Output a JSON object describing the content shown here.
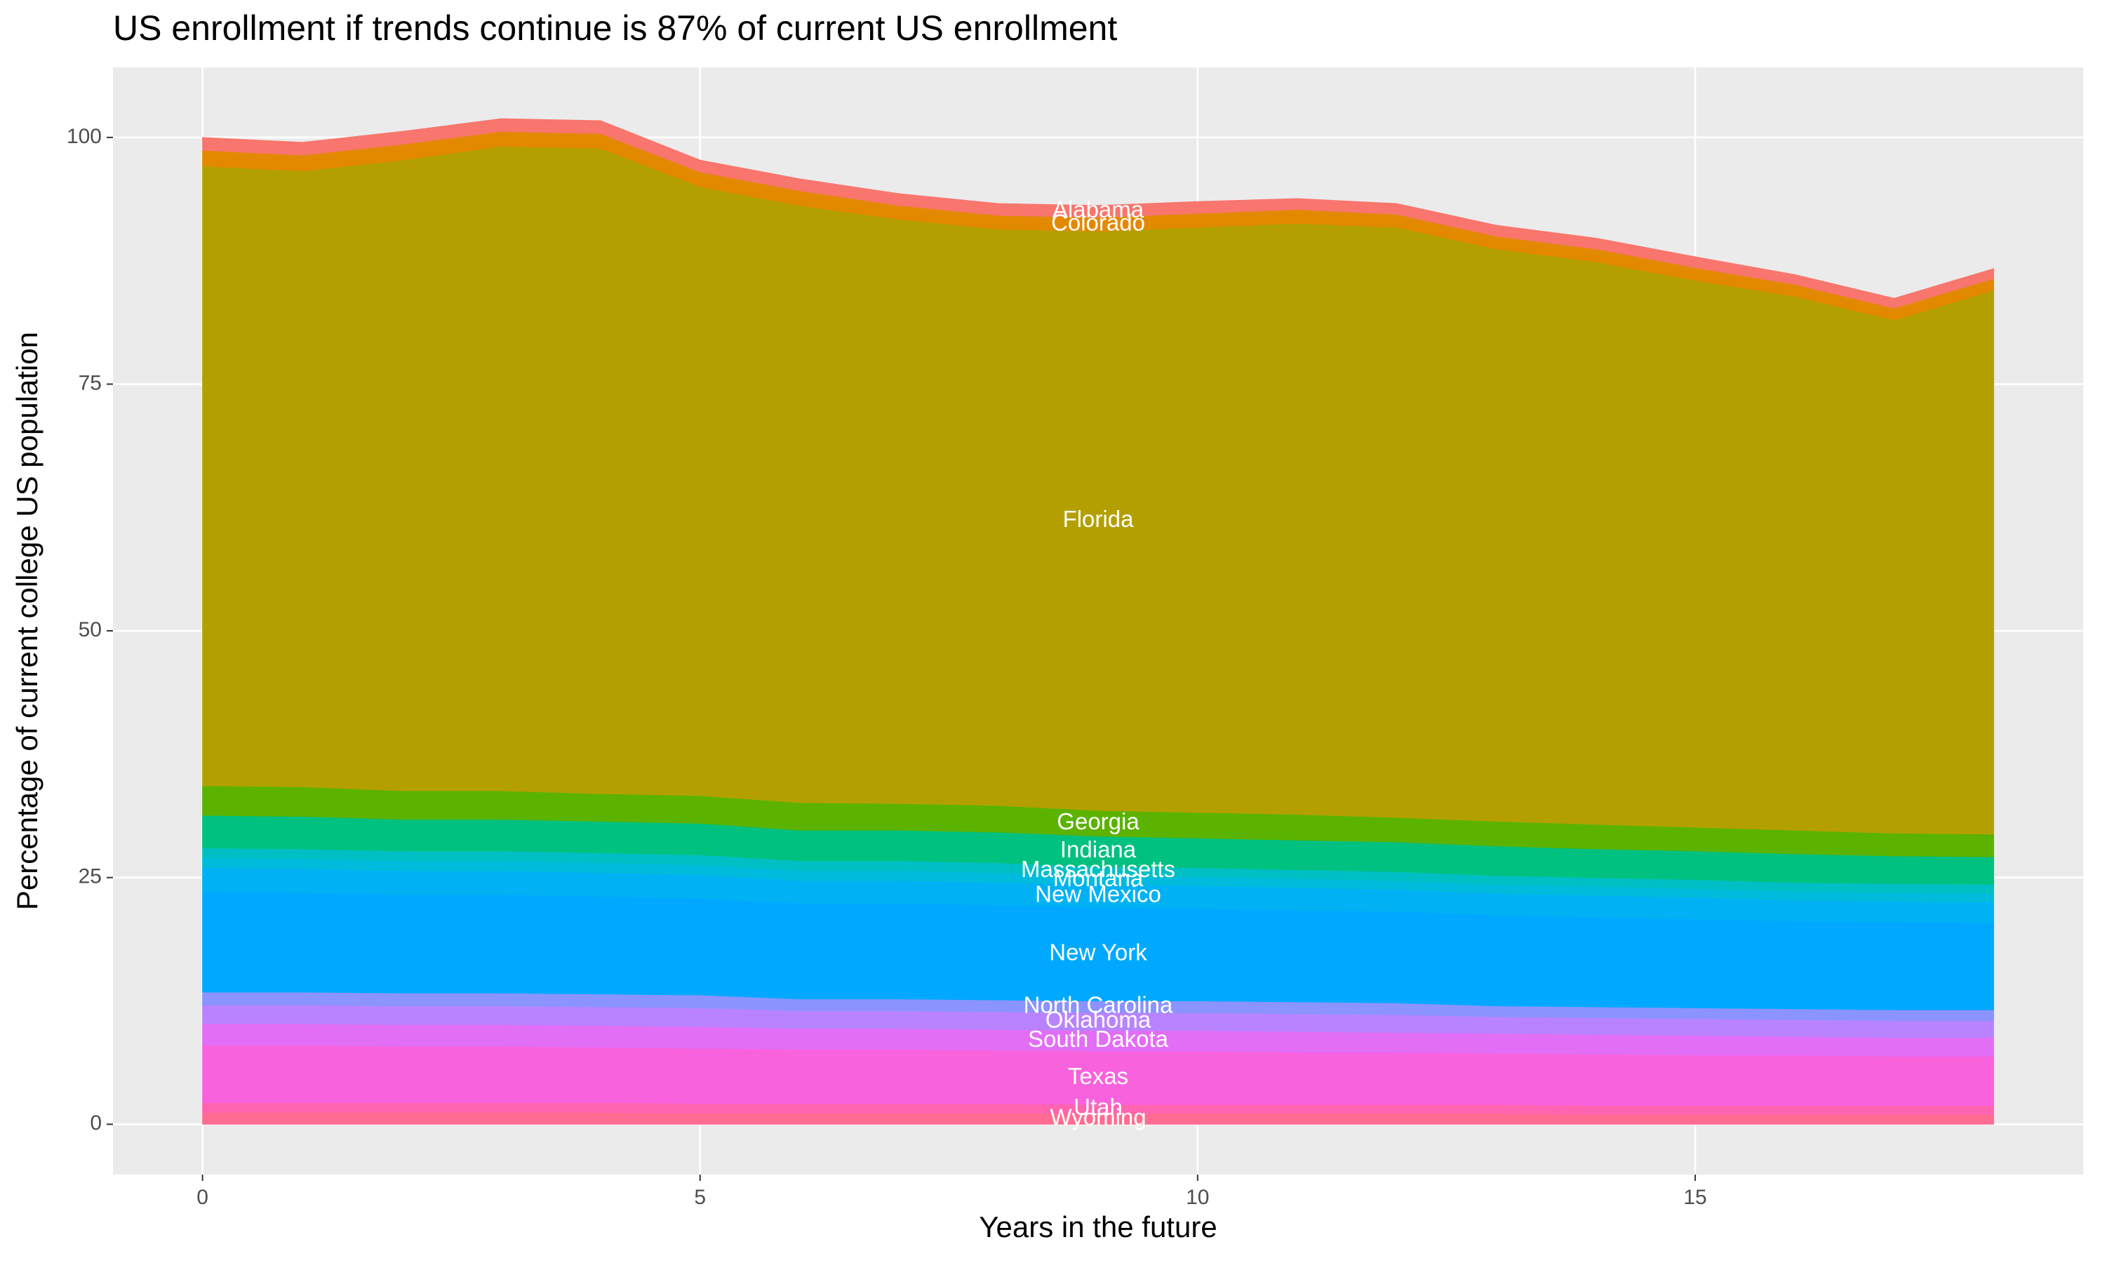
{
  "chart_data": {
    "type": "area",
    "stacked": true,
    "title": "US enrollment if trends continue is 87% of current US enrollment",
    "x_label": "Years in the future",
    "y_label": "Percentage of current college US population",
    "x": [
      0,
      1,
      2,
      3,
      4,
      5,
      6,
      7,
      8,
      9,
      10,
      11,
      12,
      13,
      14,
      15,
      16,
      17,
      18
    ],
    "xlim": [
      -0.9,
      18.9
    ],
    "xticks": [
      0,
      5,
      10,
      15
    ],
    "ylim": [
      -5.1,
      107.1
    ],
    "yticks": [
      0,
      25,
      50,
      75,
      100
    ],
    "grid": true,
    "series": [
      {
        "name": "Wyoming",
        "color": "#ff6c91",
        "values": [
          1.2,
          1.2,
          1.2,
          1.2,
          1.2,
          1.1,
          1.1,
          1.1,
          1.1,
          1.1,
          1.1,
          1.1,
          1.1,
          1.1,
          1.0,
          1.0,
          1.0,
          1.0,
          1.0
        ]
      },
      {
        "name": "Utah",
        "color": "#ff64b0",
        "values": [
          1.0,
          1.0,
          1.0,
          1.0,
          1.0,
          1.0,
          1.0,
          1.0,
          1.0,
          0.9,
          0.9,
          0.9,
          0.9,
          0.9,
          0.9,
          0.9,
          0.9,
          0.9,
          0.9
        ]
      },
      {
        "name": "Texas",
        "color": "#f962dd",
        "values": [
          5.8,
          5.8,
          5.7,
          5.7,
          5.6,
          5.6,
          5.5,
          5.5,
          5.4,
          5.4,
          5.4,
          5.3,
          5.3,
          5.2,
          5.2,
          5.1,
          5.1,
          5.0,
          5.0
        ]
      },
      {
        "name": "South Dakota",
        "color": "#e36ef6",
        "values": [
          2.2,
          2.2,
          2.2,
          2.2,
          2.2,
          2.2,
          2.1,
          2.1,
          2.1,
          2.1,
          2.1,
          2.1,
          2.0,
          2.0,
          2.0,
          2.0,
          1.9,
          1.9,
          1.9
        ]
      },
      {
        "name": "Oklahoma",
        "color": "#b983ff",
        "values": [
          1.9,
          1.9,
          1.9,
          1.9,
          1.9,
          1.9,
          1.8,
          1.8,
          1.8,
          1.8,
          1.8,
          1.8,
          1.8,
          1.7,
          1.7,
          1.7,
          1.7,
          1.7,
          1.7
        ]
      },
      {
        "name": "North Carolina",
        "color": "#8b93ff",
        "values": [
          1.3,
          1.3,
          1.3,
          1.3,
          1.3,
          1.3,
          1.2,
          1.2,
          1.2,
          1.2,
          1.2,
          1.2,
          1.2,
          1.1,
          1.1,
          1.1,
          1.1,
          1.1,
          1.1
        ]
      },
      {
        "name": "New York",
        "color": "#00a9ff",
        "values": [
          10.2,
          10.1,
          10.0,
          10.0,
          9.9,
          9.8,
          9.7,
          9.7,
          9.6,
          9.5,
          9.4,
          9.3,
          9.3,
          9.2,
          9.1,
          9.0,
          8.9,
          8.9,
          8.8
        ]
      },
      {
        "name": "New Mexico",
        "color": "#00b2f3",
        "values": [
          2.4,
          2.4,
          2.4,
          2.4,
          2.4,
          2.4,
          2.3,
          2.3,
          2.3,
          2.3,
          2.3,
          2.3,
          2.2,
          2.2,
          2.2,
          2.2,
          2.1,
          2.1,
          2.1
        ]
      },
      {
        "name": "Montana",
        "color": "#00bbdb",
        "values": [
          1.0,
          1.0,
          1.0,
          1.0,
          1.0,
          1.0,
          1.0,
          1.0,
          1.0,
          0.9,
          0.9,
          0.9,
          0.9,
          0.9,
          0.9,
          0.9,
          0.9,
          0.9,
          0.9
        ]
      },
      {
        "name": "Massachusetts",
        "color": "#00bfc4",
        "values": [
          1.0,
          1.0,
          1.0,
          1.0,
          1.0,
          1.0,
          1.0,
          1.0,
          1.0,
          0.9,
          0.9,
          0.9,
          0.9,
          0.9,
          0.9,
          0.9,
          0.9,
          0.9,
          0.9
        ]
      },
      {
        "name": "Indiana",
        "color": "#00c17f",
        "values": [
          3.3,
          3.3,
          3.2,
          3.2,
          3.2,
          3.2,
          3.1,
          3.1,
          3.1,
          3.1,
          3.0,
          3.0,
          3.0,
          3.0,
          2.9,
          2.9,
          2.9,
          2.8,
          2.8
        ]
      },
      {
        "name": "Georgia",
        "color": "#5bb300",
        "values": [
          3.0,
          3.0,
          2.9,
          2.9,
          2.8,
          2.8,
          2.8,
          2.7,
          2.7,
          2.6,
          2.6,
          2.6,
          2.5,
          2.5,
          2.5,
          2.4,
          2.4,
          2.3,
          2.3
        ]
      },
      {
        "name": "Florida",
        "color": "#b3a000",
        "values": [
          62.8,
          62.4,
          63.9,
          65.3,
          65.4,
          61.7,
          60.5,
          59.2,
          58.4,
          58.7,
          59.3,
          59.9,
          59.8,
          58.0,
          57.0,
          55.4,
          54.1,
          52.0,
          55.1
        ]
      },
      {
        "name": "Colorado",
        "color": "#e38900",
        "values": [
          1.6,
          1.6,
          1.6,
          1.5,
          1.5,
          1.5,
          1.5,
          1.4,
          1.4,
          1.4,
          1.4,
          1.4,
          1.3,
          1.3,
          1.3,
          1.3,
          1.2,
          1.2,
          1.2
        ]
      },
      {
        "name": "Alabama",
        "color": "#f8766d",
        "values": [
          1.3,
          1.3,
          1.3,
          1.3,
          1.3,
          1.2,
          1.2,
          1.2,
          1.2,
          1.2,
          1.2,
          1.1,
          1.1,
          1.1,
          1.1,
          1.1,
          1.0,
          1.0,
          1.0
        ]
      }
    ]
  }
}
